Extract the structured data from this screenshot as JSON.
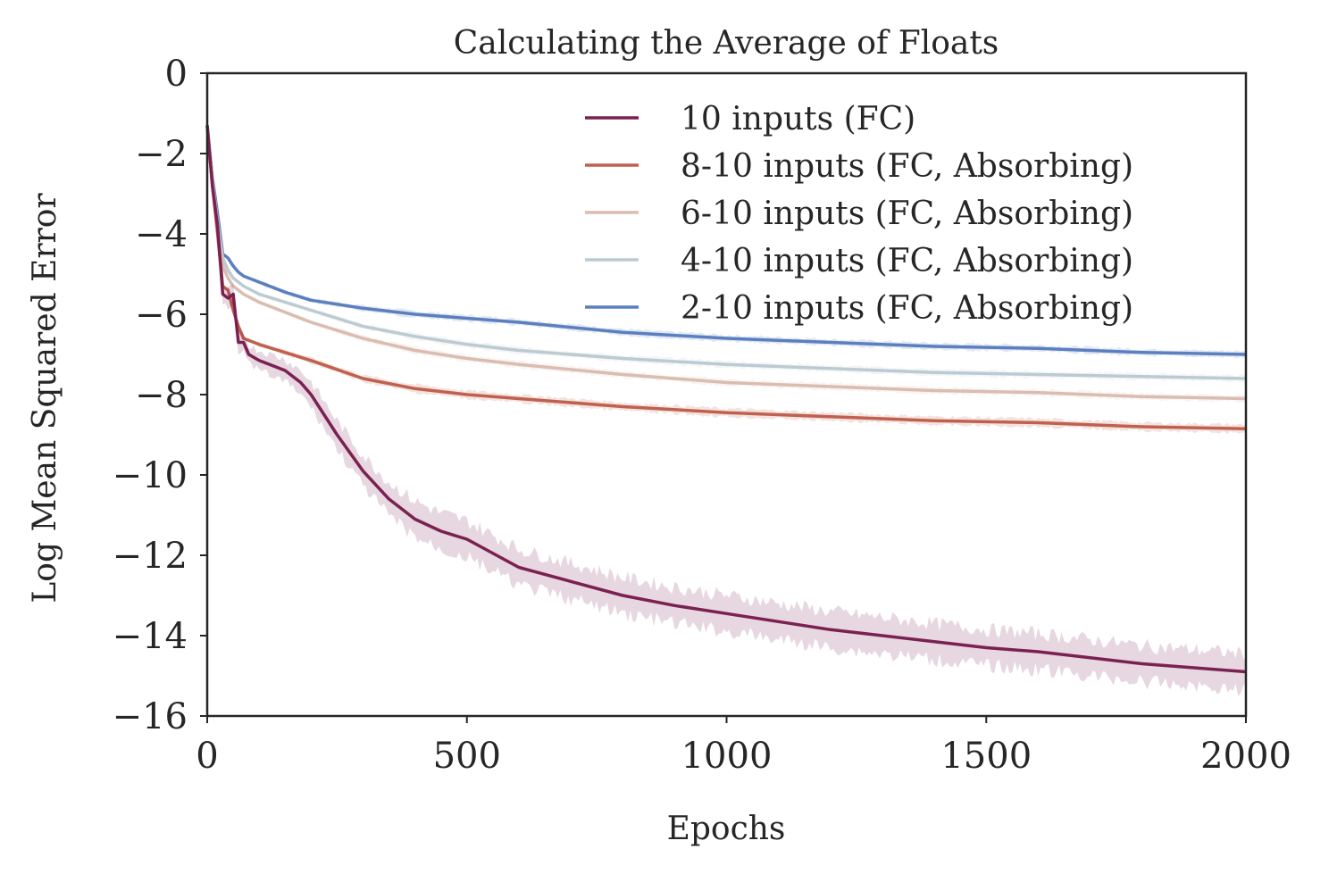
{
  "chart_data": {
    "type": "line",
    "title": "Calculating the Average of Floats",
    "xlabel": "Epochs",
    "ylabel": "Log Mean Squared Error",
    "xlim": [
      0,
      2000
    ],
    "ylim": [
      -16,
      0
    ],
    "xticks": [
      0,
      500,
      1000,
      1500,
      2000
    ],
    "xtick_labels": [
      "0",
      "500",
      "1000",
      "1500",
      "2000"
    ],
    "yticks": [
      0,
      -2,
      -4,
      -6,
      -8,
      -10,
      -12,
      -14,
      -16
    ],
    "ytick_labels": [
      "0",
      "−2",
      "−4",
      "−6",
      "−8",
      "−10",
      "−12",
      "−14",
      "−16"
    ],
    "grid": false,
    "legend_position": "top-right",
    "series": [
      {
        "name": "10 inputs (FC)",
        "color": "#7b2151",
        "band": 0.45,
        "x": [
          0,
          10,
          20,
          30,
          40,
          50,
          60,
          70,
          80,
          100,
          120,
          150,
          180,
          200,
          250,
          300,
          350,
          400,
          450,
          500,
          600,
          700,
          800,
          900,
          1000,
          1100,
          1200,
          1300,
          1400,
          1500,
          1600,
          1700,
          1800,
          1900,
          2000
        ],
        "y": [
          -1.3,
          -2.8,
          -3.8,
          -5.5,
          -5.6,
          -5.5,
          -6.7,
          -6.7,
          -7.0,
          -7.15,
          -7.25,
          -7.4,
          -7.7,
          -8.0,
          -9.0,
          -9.9,
          -10.6,
          -11.1,
          -11.4,
          -11.6,
          -12.3,
          -12.65,
          -13.0,
          -13.25,
          -13.45,
          -13.65,
          -13.85,
          -14.0,
          -14.15,
          -14.3,
          -14.4,
          -14.55,
          -14.7,
          -14.8,
          -14.9
        ]
      },
      {
        "name": "8-10 inputs  (FC, Absorbing)",
        "color": "#c0614f",
        "band": 0.1,
        "x": [
          0,
          10,
          20,
          30,
          40,
          50,
          60,
          70,
          100,
          150,
          200,
          300,
          400,
          500,
          600,
          800,
          1000,
          1200,
          1400,
          1600,
          1800,
          2000
        ],
        "y": [
          -1.3,
          -2.8,
          -4.0,
          -5.3,
          -5.4,
          -5.9,
          -6.3,
          -6.6,
          -6.75,
          -6.95,
          -7.15,
          -7.6,
          -7.85,
          -8.0,
          -8.1,
          -8.3,
          -8.45,
          -8.55,
          -8.65,
          -8.7,
          -8.8,
          -8.85
        ]
      },
      {
        "name": "6-10 inputs  (FC, Absorbing)",
        "color": "#dbbcb0",
        "band": 0.08,
        "x": [
          0,
          10,
          20,
          30,
          40,
          50,
          70,
          100,
          150,
          200,
          300,
          400,
          500,
          600,
          800,
          1000,
          1200,
          1400,
          1600,
          1800,
          2000
        ],
        "y": [
          -1.3,
          -2.7,
          -3.8,
          -4.8,
          -5.1,
          -5.3,
          -5.5,
          -5.7,
          -5.95,
          -6.2,
          -6.6,
          -6.9,
          -7.1,
          -7.25,
          -7.5,
          -7.7,
          -7.8,
          -7.9,
          -7.95,
          -8.05,
          -8.1
        ]
      },
      {
        "name": "4-10 inputs  (FC, Absorbing)",
        "color": "#bccbd2",
        "band": 0.08,
        "x": [
          0,
          10,
          20,
          30,
          40,
          50,
          70,
          100,
          150,
          200,
          300,
          400,
          500,
          600,
          800,
          1000,
          1200,
          1400,
          1600,
          1800,
          2000
        ],
        "y": [
          -1.3,
          -2.7,
          -3.7,
          -4.6,
          -4.9,
          -5.1,
          -5.3,
          -5.5,
          -5.7,
          -5.9,
          -6.3,
          -6.55,
          -6.75,
          -6.9,
          -7.1,
          -7.25,
          -7.35,
          -7.45,
          -7.5,
          -7.55,
          -7.6
        ]
      },
      {
        "name": "2-10 inputs  (FC, Absorbing)",
        "color": "#5b7fbf",
        "band": 0.08,
        "x": [
          0,
          10,
          20,
          30,
          40,
          50,
          60,
          70,
          100,
          150,
          200,
          300,
          400,
          500,
          600,
          800,
          1000,
          1200,
          1400,
          1600,
          1800,
          2000
        ],
        "y": [
          -1.3,
          -2.6,
          -3.5,
          -4.5,
          -4.6,
          -4.8,
          -4.95,
          -5.05,
          -5.2,
          -5.45,
          -5.65,
          -5.85,
          -6.0,
          -6.1,
          -6.2,
          -6.45,
          -6.6,
          -6.7,
          -6.8,
          -6.85,
          -6.95,
          -7.0
        ]
      }
    ]
  }
}
